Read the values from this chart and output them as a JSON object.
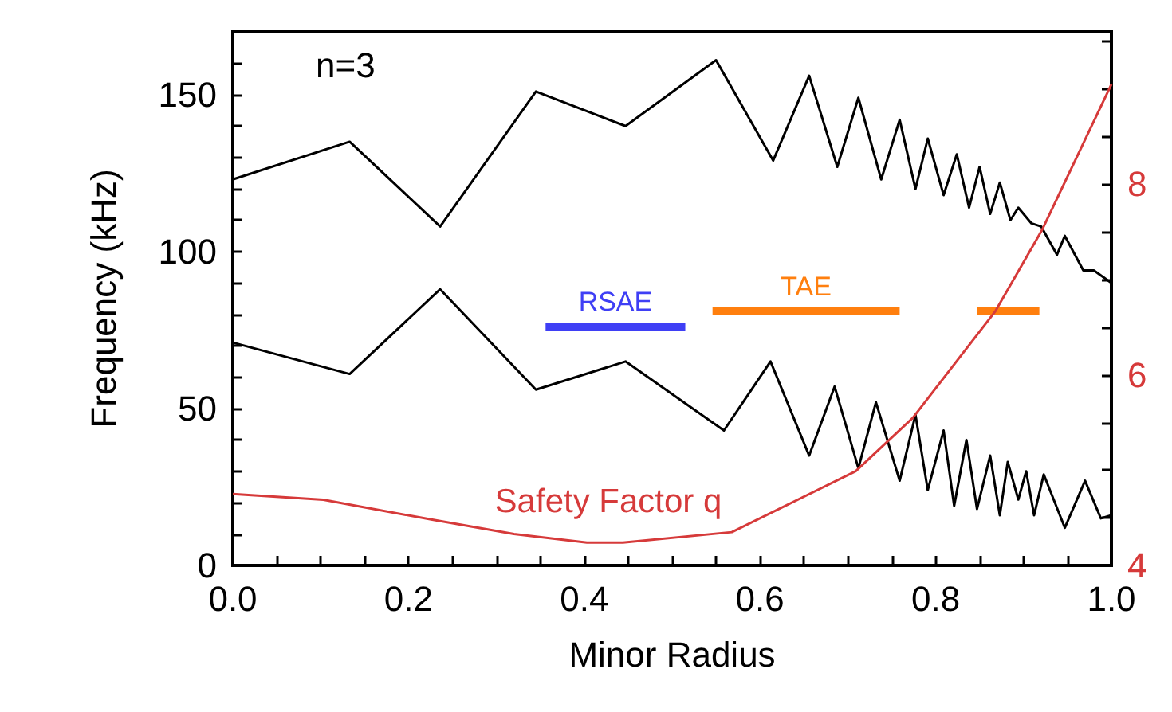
{
  "chart_data": {
    "type": "line",
    "xlabel": "Minor Radius",
    "ylabel": "Frequency (kHz)",
    "annotations": [
      "n=3"
    ],
    "marker": "none",
    "grid": false,
    "xlim": [
      0,
      1
    ],
    "xticks": [
      {
        "value": 0,
        "label": "0.0"
      },
      {
        "value": 0.05,
        "label": null
      },
      {
        "value": 0.1,
        "label": null
      },
      {
        "value": 0.15,
        "label": null
      },
      {
        "value": 0.2,
        "label": "0.2"
      },
      {
        "value": 0.25,
        "label": null
      },
      {
        "value": 0.3,
        "label": null
      },
      {
        "value": 0.35,
        "label": null
      },
      {
        "value": 0.4,
        "label": "0.4"
      },
      {
        "value": 0.45,
        "label": null
      },
      {
        "value": 0.5,
        "label": null
      },
      {
        "value": 0.55,
        "label": null
      },
      {
        "value": 0.6,
        "label": "0.6"
      },
      {
        "value": 0.65,
        "label": null
      },
      {
        "value": 0.7,
        "label": null
      },
      {
        "value": 0.75,
        "label": null
      },
      {
        "value": 0.8,
        "label": "0.8"
      },
      {
        "value": 0.85,
        "label": null
      },
      {
        "value": 0.9,
        "label": null
      },
      {
        "value": 0.95,
        "label": null
      },
      {
        "value": 1,
        "label": "1.0"
      }
    ],
    "ylim": [
      0,
      170
    ],
    "yticks": [
      0,
      {
        "value": 10,
        "label": null
      },
      {
        "value": 20,
        "label": null
      },
      {
        "value": 30,
        "label": null
      },
      {
        "value": 40,
        "label": null
      },
      50,
      {
        "value": 60,
        "label": null
      },
      {
        "value": 70,
        "label": null
      },
      {
        "value": 80,
        "label": null
      },
      {
        "value": 90,
        "label": null
      },
      100,
      {
        "value": 110,
        "label": null
      },
      {
        "value": 120,
        "label": null
      },
      {
        "value": 130,
        "label": null
      },
      {
        "value": 140,
        "label": null
      },
      150,
      {
        "value": 160,
        "label": null
      }
    ],
    "y2lim": [
      4,
      9.6
    ],
    "y2ticks": [
      4,
      {
        "value": 4.5,
        "label": null
      },
      {
        "value": 5,
        "label": null
      },
      {
        "value": 5.5,
        "label": null
      },
      6,
      {
        "value": 6.5,
        "label": null
      },
      {
        "value": 7,
        "label": null
      },
      {
        "value": 7.5,
        "label": null
      },
      8,
      {
        "value": 8.5,
        "label": null
      },
      {
        "value": 9,
        "label": null
      },
      {
        "value": 9.5,
        "label": null
      }
    ],
    "series": [
      {
        "color": "#000000",
        "x": [
          0,
          0.133,
          0.236,
          0.345,
          0.447,
          0.55,
          0.615,
          0.656,
          0.688,
          0.712,
          0.738,
          0.759,
          0.777,
          0.791,
          0.809,
          0.824,
          0.838,
          0.85,
          0.862,
          0.873,
          0.885,
          0.894,
          0.909,
          0.92,
          0.938,
          0.947,
          0.968,
          0.98,
          1.0
        ],
        "values": [
          123,
          135,
          108,
          151,
          140,
          161,
          129,
          156,
          127,
          149,
          123,
          142,
          120,
          136,
          118,
          131,
          114,
          127,
          112,
          122,
          110,
          114,
          109,
          108,
          99,
          105,
          94,
          94,
          90
        ]
      },
      {
        "color": "#000000",
        "x": [
          0,
          0.133,
          0.236,
          0.345,
          0.447,
          0.559,
          0.612,
          0.656,
          0.685,
          0.712,
          0.732,
          0.759,
          0.777,
          0.791,
          0.809,
          0.821,
          0.835,
          0.847,
          0.862,
          0.873,
          0.882,
          0.894,
          0.903,
          0.912,
          0.923,
          0.947,
          0.97,
          0.988,
          1.0
        ],
        "values": [
          71,
          61,
          88,
          56,
          65,
          43,
          65,
          35,
          57,
          31,
          52,
          27,
          48,
          24,
          43,
          19,
          40,
          18,
          35,
          16,
          33,
          21,
          30,
          16,
          29,
          12,
          27,
          15,
          16
        ]
      },
      {
        "name": "RSAE",
        "color": "#3f3ff5",
        "x": [
          0.356,
          0.515
        ],
        "values": [
          76,
          76
        ]
      },
      {
        "name": "TAE",
        "color": "#ff7f0e",
        "x": [
          0.546,
          0.759,
          0.8,
          0.847,
          0.918
        ],
        "values": [
          81,
          81,
          null,
          81,
          81
        ]
      },
      {
        "name": "Safety Factor q",
        "color": "#d63a3a",
        "axis": "y2",
        "x": [
          0,
          0.103,
          0.227,
          0.32,
          0.403,
          0.444,
          0.568,
          0.709,
          0.774,
          0.868,
          0.921,
          1.0
        ],
        "values": [
          4.75,
          4.69,
          4.48,
          4.33,
          4.24,
          4.24,
          4.35,
          4.99,
          5.55,
          6.67,
          7.52,
          9.05
        ]
      }
    ]
  }
}
